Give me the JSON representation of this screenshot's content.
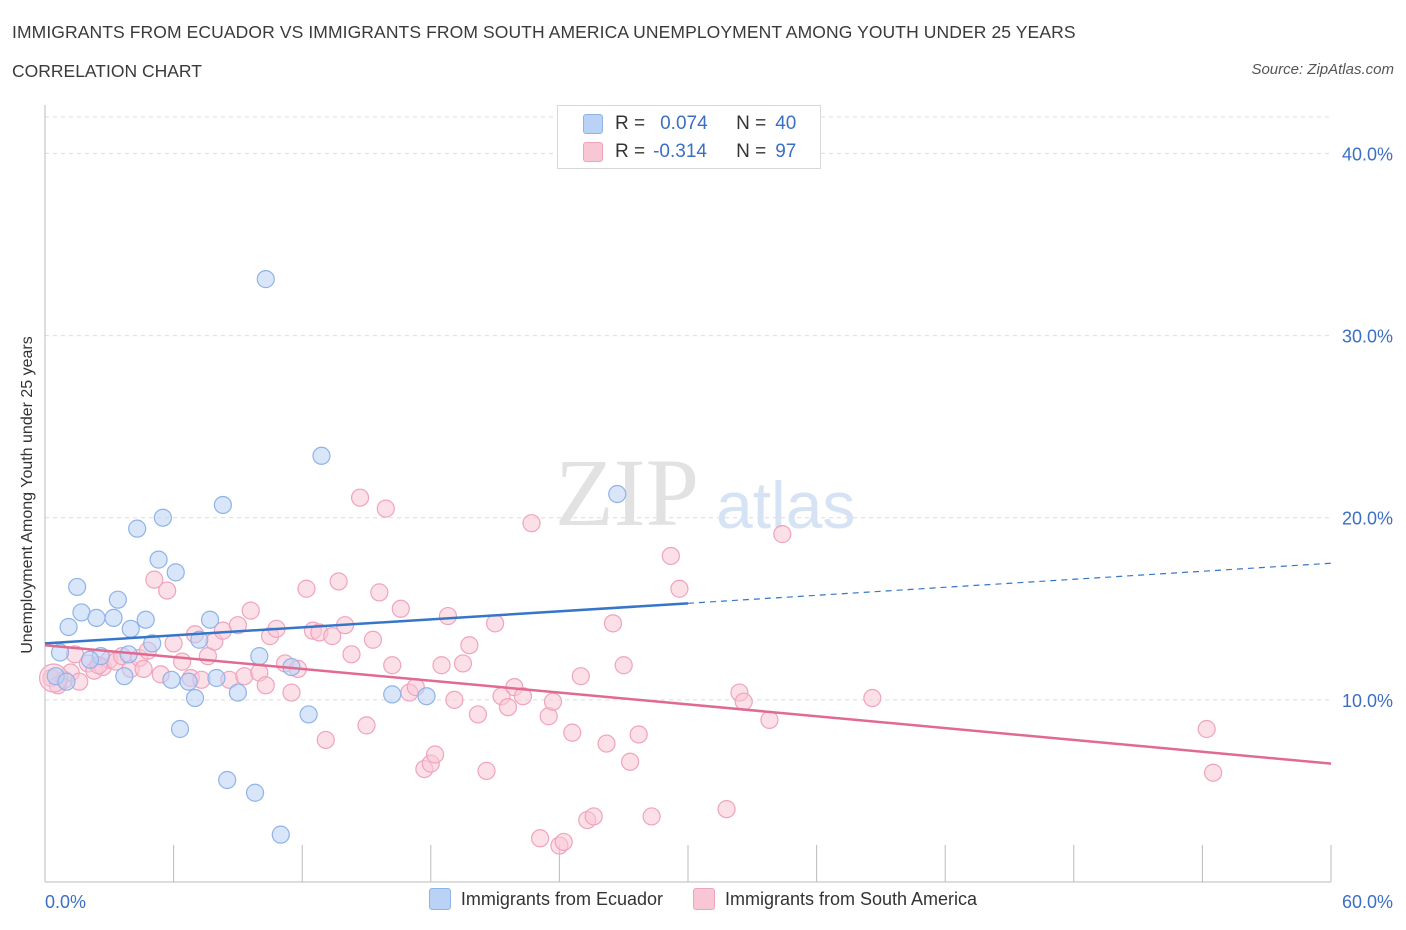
{
  "header": {
    "title": "IMMIGRANTS FROM ECUADOR VS IMMIGRANTS FROM SOUTH AMERICA UNEMPLOYMENT AMONG YOUTH UNDER 25 YEARS",
    "subtitle": "CORRELATION CHART",
    "source": "Source: ZipAtlas.com"
  },
  "legend": {
    "r_label": "R =",
    "n_label": "N =",
    "series": [
      {
        "r": "0.074",
        "n": "40"
      },
      {
        "r": "-0.314",
        "n": "97"
      }
    ]
  },
  "colors": {
    "ecuador_fill": "#b9d2f5",
    "ecuador_stroke": "#8fb3e8",
    "ecuador_line": "#3676c8",
    "sa_fill": "#f9c6d6",
    "sa_stroke": "#f0a3bd",
    "sa_line": "#e06a92",
    "axis_text": "#3b6fc4",
    "grid": "#dcdcdc"
  },
  "watermark": {
    "zip": "ZIP",
    "atlas": "atlas"
  },
  "chart_data": {
    "type": "scatter",
    "title": "IMMIGRANTS FROM ECUADOR VS IMMIGRANTS FROM SOUTH AMERICA UNEMPLOYMENT AMONG YOUTH UNDER 25 YEARS",
    "xlabel": "",
    "ylabel": "Unemployment Among Youth under 25 years",
    "xlim": [
      0,
      60
    ],
    "ylim": [
      0,
      42
    ],
    "x_tick_labels": [
      "0.0%",
      "60.0%"
    ],
    "y_ticks": [
      10,
      20,
      30,
      40
    ],
    "y_tick_labels": [
      "10.0%",
      "20.0%",
      "30.0%",
      "40.0%"
    ],
    "legend_position": "bottom",
    "series": [
      {
        "name": "Immigrants from Ecuador",
        "r": 0.074,
        "n": 40,
        "trend": {
          "x": [
            0,
            30
          ],
          "y": [
            13.1,
            15.3
          ],
          "dashed_to_x": 60,
          "dashed_to_y": 17.5
        },
        "points": [
          [
            0.5,
            11.3
          ],
          [
            0.7,
            12.6
          ],
          [
            1.1,
            14.0
          ],
          [
            1.5,
            16.2
          ],
          [
            1.7,
            14.8
          ],
          [
            2.4,
            14.5
          ],
          [
            2.6,
            12.4
          ],
          [
            3.2,
            14.5
          ],
          [
            3.4,
            15.5
          ],
          [
            3.7,
            11.3
          ],
          [
            4.0,
            13.9
          ],
          [
            4.3,
            19.4
          ],
          [
            4.7,
            14.4
          ],
          [
            5.0,
            13.1
          ],
          [
            5.3,
            17.7
          ],
          [
            5.5,
            20.0
          ],
          [
            5.9,
            11.1
          ],
          [
            6.1,
            17.0
          ],
          [
            6.3,
            8.4
          ],
          [
            6.7,
            11.0
          ],
          [
            7.0,
            10.1
          ],
          [
            7.2,
            13.3
          ],
          [
            7.7,
            14.4
          ],
          [
            8.0,
            11.2
          ],
          [
            8.3,
            20.7
          ],
          [
            8.5,
            5.6
          ],
          [
            9.0,
            10.4
          ],
          [
            9.8,
            4.9
          ],
          [
            10.0,
            12.4
          ],
          [
            10.3,
            33.1
          ],
          [
            11.0,
            2.6
          ],
          [
            11.5,
            11.8
          ],
          [
            12.3,
            9.2
          ],
          [
            12.9,
            23.4
          ],
          [
            16.2,
            10.3
          ],
          [
            17.8,
            10.2
          ],
          [
            26.7,
            21.3
          ],
          [
            2.1,
            12.2
          ],
          [
            3.9,
            12.5
          ],
          [
            1.0,
            11.0
          ]
        ]
      },
      {
        "name": "Immigrants from South America",
        "r": -0.314,
        "n": 97,
        "trend": {
          "x": [
            0,
            60
          ],
          "y": [
            13.0,
            6.5
          ]
        },
        "points": [
          [
            0.3,
            11.2
          ],
          [
            0.6,
            10.8
          ],
          [
            0.9,
            11.1
          ],
          [
            1.2,
            11.5
          ],
          [
            1.6,
            11.0
          ],
          [
            2.0,
            12.0
          ],
          [
            2.3,
            11.6
          ],
          [
            2.7,
            11.8
          ],
          [
            3.0,
            12.2
          ],
          [
            3.3,
            12.1
          ],
          [
            3.6,
            12.4
          ],
          [
            4.0,
            11.7
          ],
          [
            4.4,
            12.3
          ],
          [
            4.8,
            12.7
          ],
          [
            5.1,
            16.6
          ],
          [
            5.4,
            11.4
          ],
          [
            5.7,
            16.0
          ],
          [
            6.0,
            13.1
          ],
          [
            6.4,
            12.1
          ],
          [
            6.8,
            11.2
          ],
          [
            7.0,
            13.6
          ],
          [
            7.3,
            11.1
          ],
          [
            7.6,
            12.4
          ],
          [
            7.9,
            13.2
          ],
          [
            8.3,
            13.8
          ],
          [
            8.6,
            11.1
          ],
          [
            9.0,
            14.1
          ],
          [
            9.3,
            11.3
          ],
          [
            9.6,
            14.9
          ],
          [
            10.0,
            11.5
          ],
          [
            10.3,
            10.8
          ],
          [
            10.5,
            13.5
          ],
          [
            10.8,
            13.9
          ],
          [
            11.2,
            12.0
          ],
          [
            11.5,
            10.4
          ],
          [
            11.8,
            11.7
          ],
          [
            12.2,
            16.1
          ],
          [
            12.5,
            13.8
          ],
          [
            12.8,
            13.7
          ],
          [
            13.1,
            7.8
          ],
          [
            13.4,
            13.5
          ],
          [
            13.7,
            16.5
          ],
          [
            14.0,
            14.1
          ],
          [
            14.3,
            12.5
          ],
          [
            14.7,
            21.1
          ],
          [
            15.0,
            8.6
          ],
          [
            15.3,
            13.3
          ],
          [
            15.6,
            15.9
          ],
          [
            15.9,
            20.5
          ],
          [
            16.2,
            11.9
          ],
          [
            16.6,
            15.0
          ],
          [
            17.0,
            10.4
          ],
          [
            17.3,
            10.7
          ],
          [
            17.7,
            6.2
          ],
          [
            18.0,
            6.5
          ],
          [
            18.2,
            7.0
          ],
          [
            18.5,
            11.9
          ],
          [
            18.8,
            14.6
          ],
          [
            19.1,
            10.0
          ],
          [
            19.5,
            12.0
          ],
          [
            19.8,
            13.0
          ],
          [
            20.2,
            9.2
          ],
          [
            20.6,
            6.1
          ],
          [
            21.0,
            14.2
          ],
          [
            21.3,
            10.2
          ],
          [
            21.6,
            9.6
          ],
          [
            21.9,
            10.7
          ],
          [
            22.3,
            10.2
          ],
          [
            22.7,
            19.7
          ],
          [
            23.1,
            2.4
          ],
          [
            23.5,
            9.1
          ],
          [
            23.7,
            9.9
          ],
          [
            24.0,
            2.0
          ],
          [
            24.2,
            2.2
          ],
          [
            24.6,
            8.2
          ],
          [
            25.0,
            11.3
          ],
          [
            25.3,
            3.4
          ],
          [
            25.6,
            3.6
          ],
          [
            26.2,
            7.6
          ],
          [
            26.5,
            14.2
          ],
          [
            27.0,
            11.9
          ],
          [
            27.3,
            6.6
          ],
          [
            27.7,
            8.1
          ],
          [
            28.3,
            3.6
          ],
          [
            29.2,
            17.9
          ],
          [
            29.6,
            16.1
          ],
          [
            31.8,
            4.0
          ],
          [
            32.4,
            10.4
          ],
          [
            32.6,
            9.9
          ],
          [
            33.8,
            8.9
          ],
          [
            34.4,
            19.1
          ],
          [
            38.6,
            10.1
          ],
          [
            54.2,
            8.4
          ],
          [
            54.5,
            6.0
          ],
          [
            1.4,
            12.5
          ],
          [
            2.5,
            11.9
          ],
          [
            4.6,
            11.7
          ]
        ]
      }
    ]
  },
  "bottom_legend": {
    "items": [
      {
        "label": "Immigrants from Ecuador"
      },
      {
        "label": "Immigrants from South America"
      }
    ]
  }
}
